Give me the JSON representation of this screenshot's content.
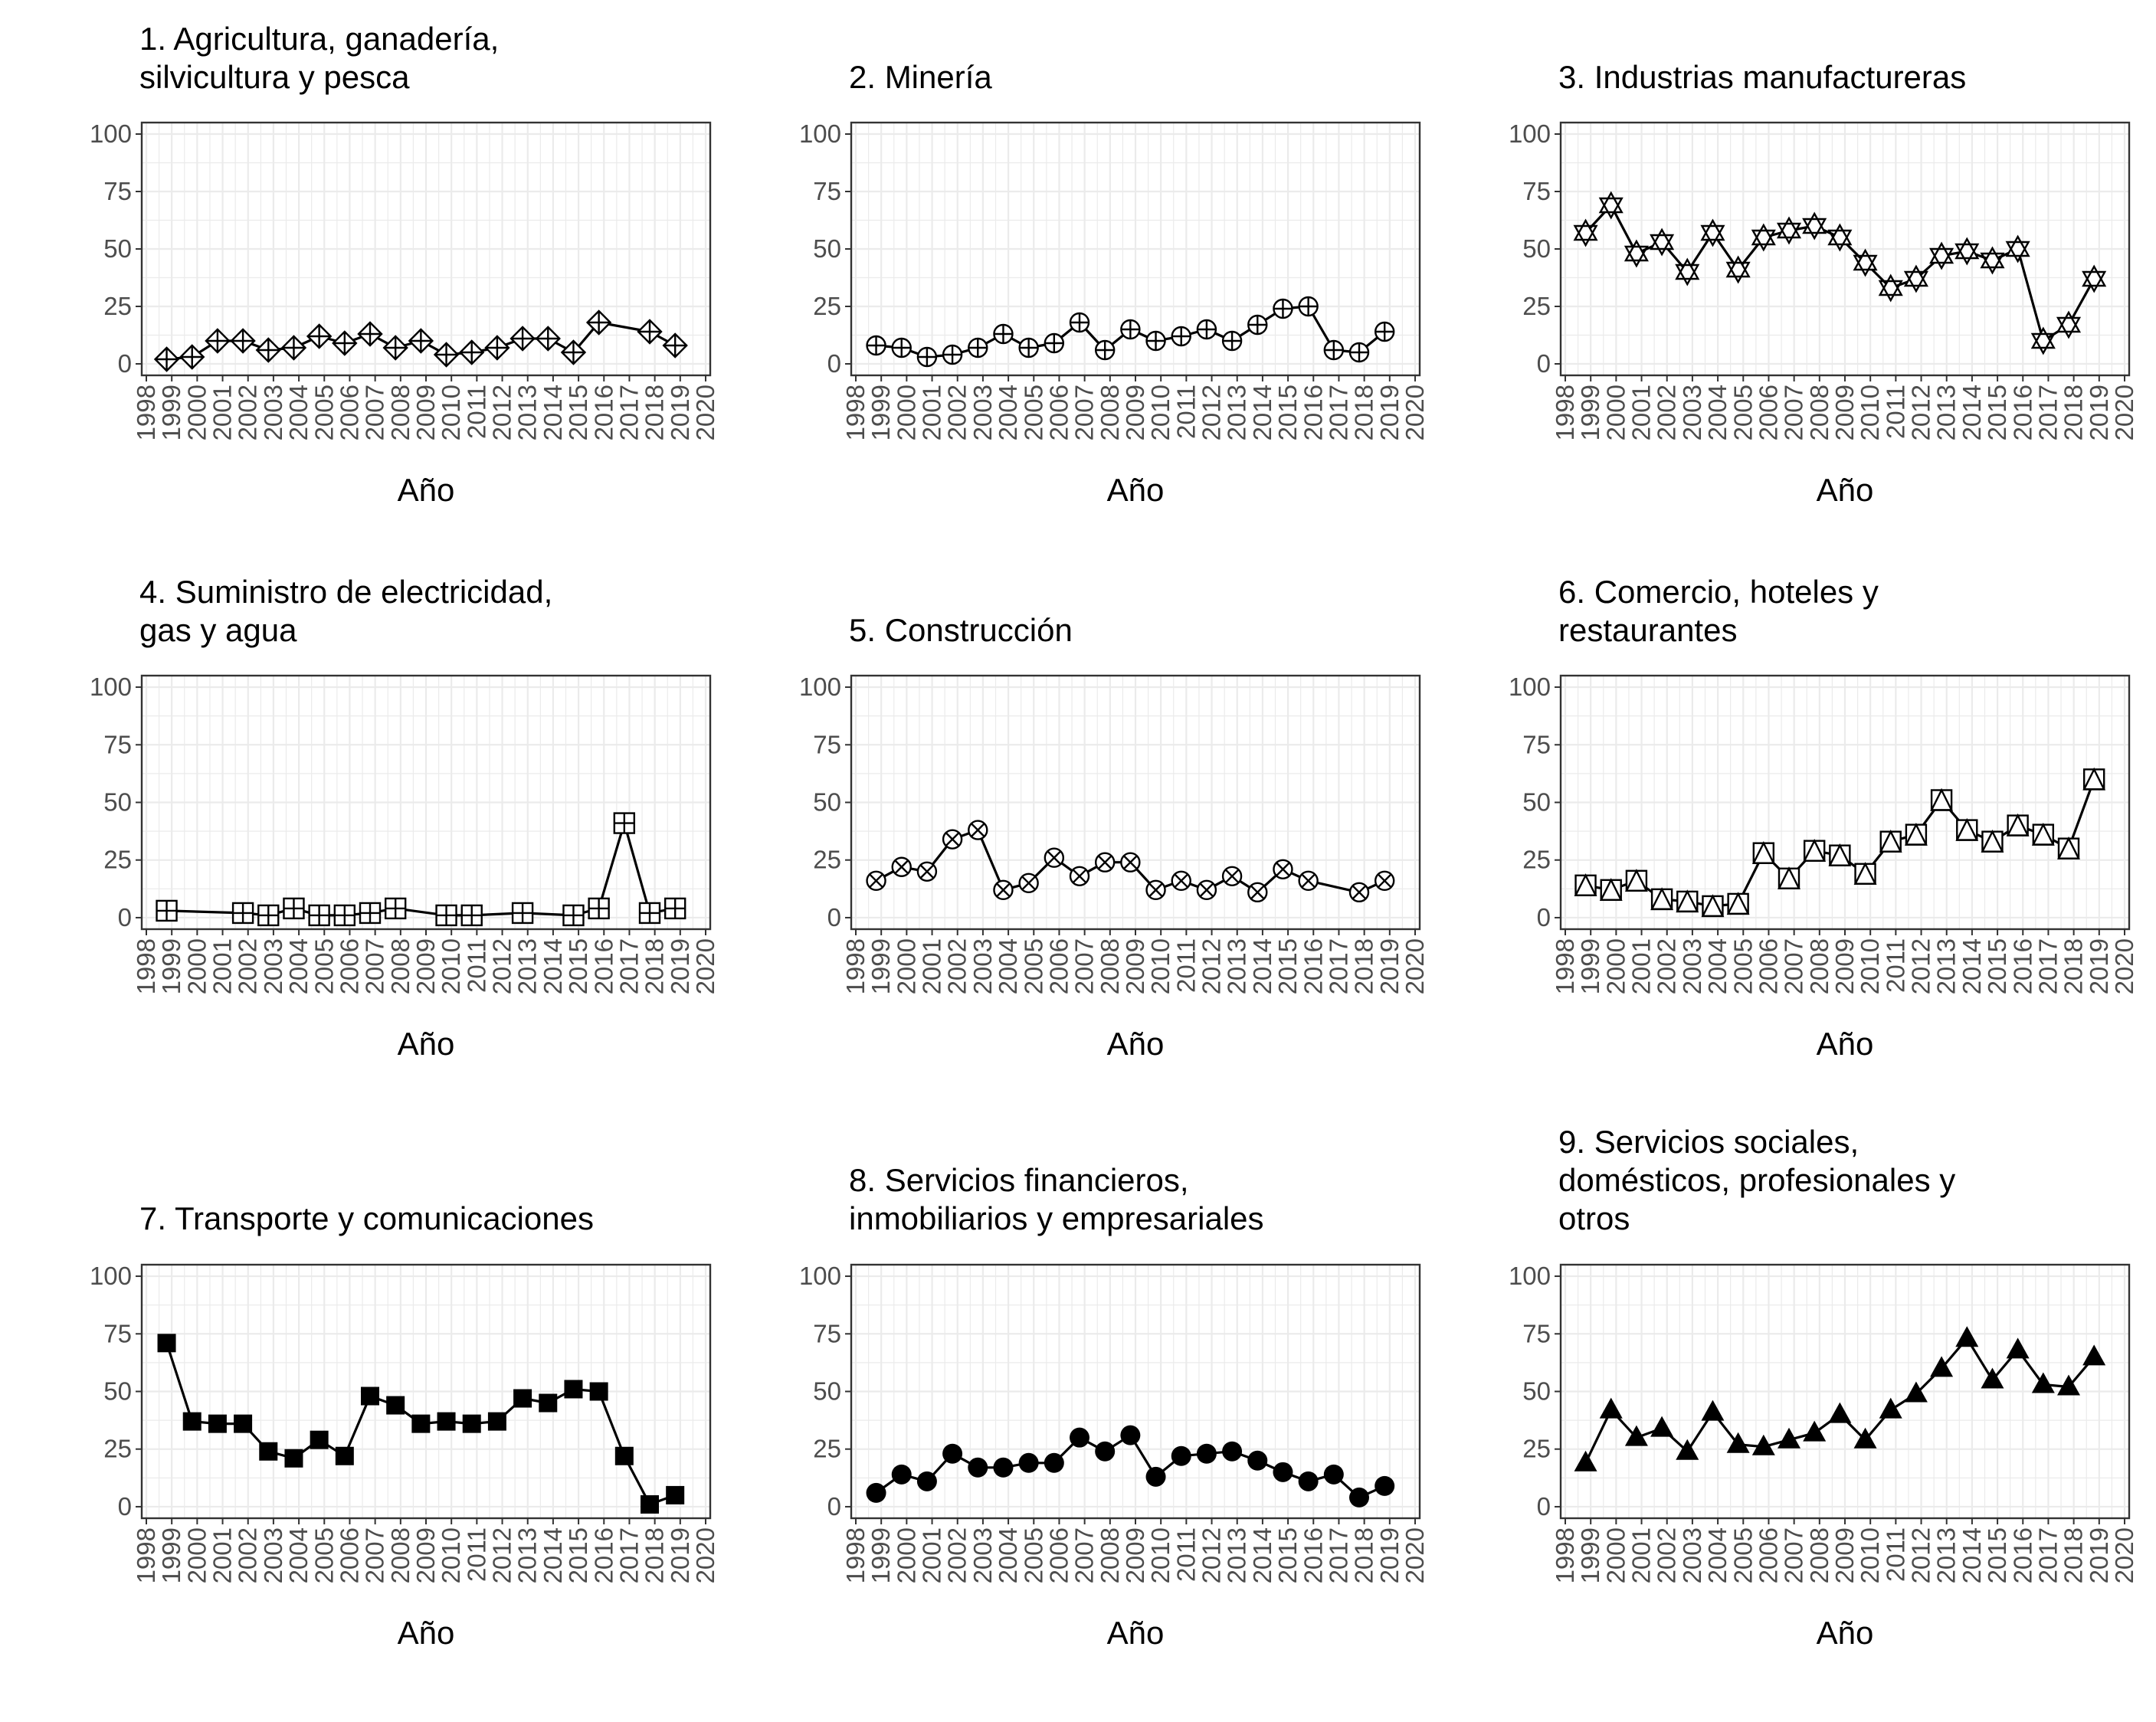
{
  "chart_data": [
    {
      "type": "line",
      "title": [
        "1. Agricultura, ganadería,",
        "silvicultura y pesca"
      ],
      "xlabel": "Año",
      "ylabel": "",
      "xlim": [
        1998,
        2020
      ],
      "ylim": [
        0,
        100
      ],
      "x_ticks": [
        "1998",
        "1999",
        "2000",
        "2001",
        "2002",
        "2003",
        "2004",
        "2005",
        "2006",
        "2007",
        "2008",
        "2009",
        "2010",
        "2011",
        "2012",
        "2013",
        "2014",
        "2015",
        "2016",
        "2017",
        "2018",
        "2019",
        "2020"
      ],
      "y_ticks": [
        "0",
        "25",
        "50",
        "75",
        "100"
      ],
      "grid": true,
      "marker": "diamond-plus",
      "x": [
        1998.8,
        1999.8,
        2000.8,
        2001.8,
        2002.8,
        2003.8,
        2004.8,
        2005.8,
        2006.8,
        2007.8,
        2008.8,
        2009.8,
        2010.8,
        2011.8,
        2012.8,
        2013.8,
        2014.8,
        2015.8,
        2017.8,
        2018.8
      ],
      "y": [
        2,
        3,
        10,
        10,
        6,
        7,
        12,
        9,
        13,
        7,
        10,
        4,
        5,
        7,
        11,
        11,
        5,
        18,
        14,
        8
      ]
    },
    {
      "type": "line",
      "title": [
        "2. Minería"
      ],
      "xlabel": "Año",
      "ylabel": "",
      "xlim": [
        1998,
        2020
      ],
      "ylim": [
        0,
        100
      ],
      "x_ticks": [
        "1998",
        "1999",
        "2000",
        "2001",
        "2002",
        "2003",
        "2004",
        "2005",
        "2006",
        "2007",
        "2008",
        "2009",
        "2010",
        "2011",
        "2012",
        "2013",
        "2014",
        "2015",
        "2016",
        "2017",
        "2018",
        "2019",
        "2020"
      ],
      "y_ticks": [
        "0",
        "25",
        "50",
        "75",
        "100"
      ],
      "grid": true,
      "marker": "circle-plus",
      "x": [
        1998.8,
        1999.8,
        2000.8,
        2001.8,
        2002.8,
        2003.8,
        2004.8,
        2005.8,
        2006.8,
        2007.8,
        2008.8,
        2009.8,
        2010.8,
        2011.8,
        2012.8,
        2013.8,
        2014.8,
        2015.8,
        2016.8,
        2017.8,
        2018.8
      ],
      "y": [
        8,
        7,
        3,
        4,
        7,
        13,
        7,
        9,
        18,
        6,
        15,
        10,
        12,
        15,
        10,
        17,
        24,
        25,
        6,
        5,
        14
      ]
    },
    {
      "type": "line",
      "title": [
        "3. Industrias manufactureras"
      ],
      "xlabel": "Año",
      "ylabel": "",
      "xlim": [
        1998,
        2020
      ],
      "ylim": [
        0,
        100
      ],
      "x_ticks": [
        "1998",
        "1999",
        "2000",
        "2001",
        "2002",
        "2003",
        "2004",
        "2005",
        "2006",
        "2007",
        "2008",
        "2009",
        "2010",
        "2011",
        "2012",
        "2013",
        "2014",
        "2015",
        "2016",
        "2017",
        "2018",
        "2019",
        "2020"
      ],
      "y_ticks": [
        "0",
        "25",
        "50",
        "75",
        "100"
      ],
      "grid": true,
      "marker": "star-triangles",
      "x": [
        1998.8,
        1999.8,
        2000.8,
        2001.8,
        2002.8,
        2003.8,
        2004.8,
        2005.8,
        2006.8,
        2007.8,
        2008.8,
        2009.8,
        2010.8,
        2011.8,
        2012.8,
        2013.8,
        2014.8,
        2015.8,
        2016.8,
        2017.8,
        2018.8
      ],
      "y": [
        57,
        69,
        48,
        53,
        40,
        57,
        41,
        55,
        58,
        60,
        55,
        44,
        33,
        37,
        47,
        49,
        45,
        50,
        10,
        17,
        37
      ]
    },
    {
      "type": "line",
      "title": [
        "4. Suministro de electricidad,",
        "gas y agua"
      ],
      "xlabel": "Año",
      "ylabel": "",
      "xlim": [
        1998,
        2020
      ],
      "ylim": [
        0,
        100
      ],
      "x_ticks": [
        "1998",
        "1999",
        "2000",
        "2001",
        "2002",
        "2003",
        "2004",
        "2005",
        "2006",
        "2007",
        "2008",
        "2009",
        "2010",
        "2011",
        "2012",
        "2013",
        "2014",
        "2015",
        "2016",
        "2017",
        "2018",
        "2019",
        "2020"
      ],
      "y_ticks": [
        "0",
        "25",
        "50",
        "75",
        "100"
      ],
      "grid": true,
      "marker": "square-plus",
      "x": [
        1998.8,
        2001.8,
        2002.8,
        2003.8,
        2004.8,
        2005.8,
        2006.8,
        2007.8,
        2009.8,
        2010.8,
        2012.8,
        2014.8,
        2015.8,
        2016.8,
        2017.8,
        2018.8
      ],
      "y": [
        3,
        2,
        1,
        4,
        1,
        1,
        2,
        4,
        1,
        1,
        2,
        1,
        4,
        41,
        2,
        4
      ]
    },
    {
      "type": "line",
      "title": [
        "5. Construcción"
      ],
      "xlabel": "Año",
      "ylabel": "",
      "xlim": [
        1998,
        2020
      ],
      "ylim": [
        0,
        100
      ],
      "x_ticks": [
        "1998",
        "1999",
        "2000",
        "2001",
        "2002",
        "2003",
        "2004",
        "2005",
        "2006",
        "2007",
        "2008",
        "2009",
        "2010",
        "2011",
        "2012",
        "2013",
        "2014",
        "2015",
        "2016",
        "2017",
        "2018",
        "2019",
        "2020"
      ],
      "y_ticks": [
        "0",
        "25",
        "50",
        "75",
        "100"
      ],
      "grid": true,
      "marker": "circle-x",
      "x": [
        1998.8,
        1999.8,
        2000.8,
        2001.8,
        2002.8,
        2003.8,
        2004.8,
        2005.8,
        2006.8,
        2007.8,
        2008.8,
        2009.8,
        2010.8,
        2011.8,
        2012.8,
        2013.8,
        2014.8,
        2015.8,
        2017.8,
        2018.8
      ],
      "y": [
        16,
        22,
        20,
        34,
        38,
        12,
        15,
        26,
        18,
        24,
        24,
        12,
        16,
        12,
        18,
        11,
        21,
        16,
        11,
        16
      ]
    },
    {
      "type": "line",
      "title": [
        "6. Comercio, hoteles y",
        "restaurantes"
      ],
      "xlabel": "Año",
      "ylabel": "",
      "xlim": [
        1998,
        2020
      ],
      "ylim": [
        0,
        100
      ],
      "x_ticks": [
        "1998",
        "1999",
        "2000",
        "2001",
        "2002",
        "2003",
        "2004",
        "2005",
        "2006",
        "2007",
        "2008",
        "2009",
        "2010",
        "2011",
        "2012",
        "2013",
        "2014",
        "2015",
        "2016",
        "2017",
        "2018",
        "2019",
        "2020"
      ],
      "y_ticks": [
        "0",
        "25",
        "50",
        "75",
        "100"
      ],
      "grid": true,
      "marker": "square-triangle",
      "x": [
        1998.8,
        1999.8,
        2000.8,
        2001.8,
        2002.8,
        2003.8,
        2004.8,
        2005.8,
        2006.8,
        2007.8,
        2008.8,
        2009.8,
        2010.8,
        2011.8,
        2012.8,
        2013.8,
        2014.8,
        2015.8,
        2016.8,
        2017.8,
        2018.8
      ],
      "y": [
        14,
        12,
        16,
        8,
        7,
        5,
        6,
        28,
        17,
        29,
        27,
        19,
        33,
        36,
        51,
        38,
        33,
        40,
        36,
        30,
        60
      ]
    },
    {
      "type": "line",
      "title": [
        "7. Transporte y comunicaciones"
      ],
      "xlabel": "Año",
      "ylabel": "",
      "xlim": [
        1998,
        2020
      ],
      "ylim": [
        0,
        100
      ],
      "x_ticks": [
        "1998",
        "1999",
        "2000",
        "2001",
        "2002",
        "2003",
        "2004",
        "2005",
        "2006",
        "2007",
        "2008",
        "2009",
        "2010",
        "2011",
        "2012",
        "2013",
        "2014",
        "2015",
        "2016",
        "2017",
        "2018",
        "2019",
        "2020"
      ],
      "y_ticks": [
        "0",
        "25",
        "50",
        "75",
        "100"
      ],
      "grid": true,
      "marker": "square-filled",
      "x": [
        1998.8,
        1999.8,
        2000.8,
        2001.8,
        2002.8,
        2003.8,
        2004.8,
        2005.8,
        2006.8,
        2007.8,
        2008.8,
        2009.8,
        2010.8,
        2011.8,
        2012.8,
        2013.8,
        2014.8,
        2015.8,
        2016.8,
        2017.8,
        2018.8
      ],
      "y": [
        71,
        37,
        36,
        36,
        24,
        21,
        29,
        22,
        48,
        44,
        36,
        37,
        36,
        37,
        47,
        45,
        51,
        50,
        22,
        1,
        5
      ]
    },
    {
      "type": "line",
      "title": [
        "8. Servicios financieros,",
        "inmobiliarios y empresariales"
      ],
      "xlabel": "Año",
      "ylabel": "",
      "xlim": [
        1998,
        2020
      ],
      "ylim": [
        0,
        100
      ],
      "x_ticks": [
        "1998",
        "1999",
        "2000",
        "2001",
        "2002",
        "2003",
        "2004",
        "2005",
        "2006",
        "2007",
        "2008",
        "2009",
        "2010",
        "2011",
        "2012",
        "2013",
        "2014",
        "2015",
        "2016",
        "2017",
        "2018",
        "2019",
        "2020"
      ],
      "y_ticks": [
        "0",
        "25",
        "50",
        "75",
        "100"
      ],
      "grid": true,
      "marker": "circle-filled",
      "x": [
        1998.8,
        1999.8,
        2000.8,
        2001.8,
        2002.8,
        2003.8,
        2004.8,
        2005.8,
        2006.8,
        2007.8,
        2008.8,
        2009.8,
        2010.8,
        2011.8,
        2012.8,
        2013.8,
        2014.8,
        2015.8,
        2016.8,
        2017.8,
        2018.8
      ],
      "y": [
        6,
        14,
        11,
        23,
        17,
        17,
        19,
        19,
        30,
        24,
        31,
        13,
        22,
        23,
        24,
        20,
        15,
        11,
        14,
        4,
        9
      ]
    },
    {
      "type": "line",
      "title": [
        "9. Servicios sociales,",
        "domésticos, profesionales y",
        "otros"
      ],
      "xlabel": "Año",
      "ylabel": "",
      "xlim": [
        1998,
        2020
      ],
      "ylim": [
        0,
        100
      ],
      "x_ticks": [
        "1998",
        "1999",
        "2000",
        "2001",
        "2002",
        "2003",
        "2004",
        "2005",
        "2006",
        "2007",
        "2008",
        "2009",
        "2010",
        "2011",
        "2012",
        "2013",
        "2014",
        "2015",
        "2016",
        "2017",
        "2018",
        "2019",
        "2020"
      ],
      "y_ticks": [
        "0",
        "25",
        "50",
        "75",
        "100"
      ],
      "grid": true,
      "marker": "triangle-filled",
      "x": [
        1998.8,
        1999.8,
        2000.8,
        2001.8,
        2002.8,
        2003.8,
        2004.8,
        2005.8,
        2006.8,
        2007.8,
        2008.8,
        2009.8,
        2010.8,
        2011.8,
        2012.8,
        2013.8,
        2014.8,
        2015.8,
        2016.8,
        2017.8,
        2018.8
      ],
      "y": [
        19,
        42,
        30,
        34,
        24,
        41,
        27,
        26,
        29,
        32,
        40,
        29,
        42,
        49,
        60,
        73,
        55,
        68,
        53,
        52,
        65
      ]
    }
  ]
}
